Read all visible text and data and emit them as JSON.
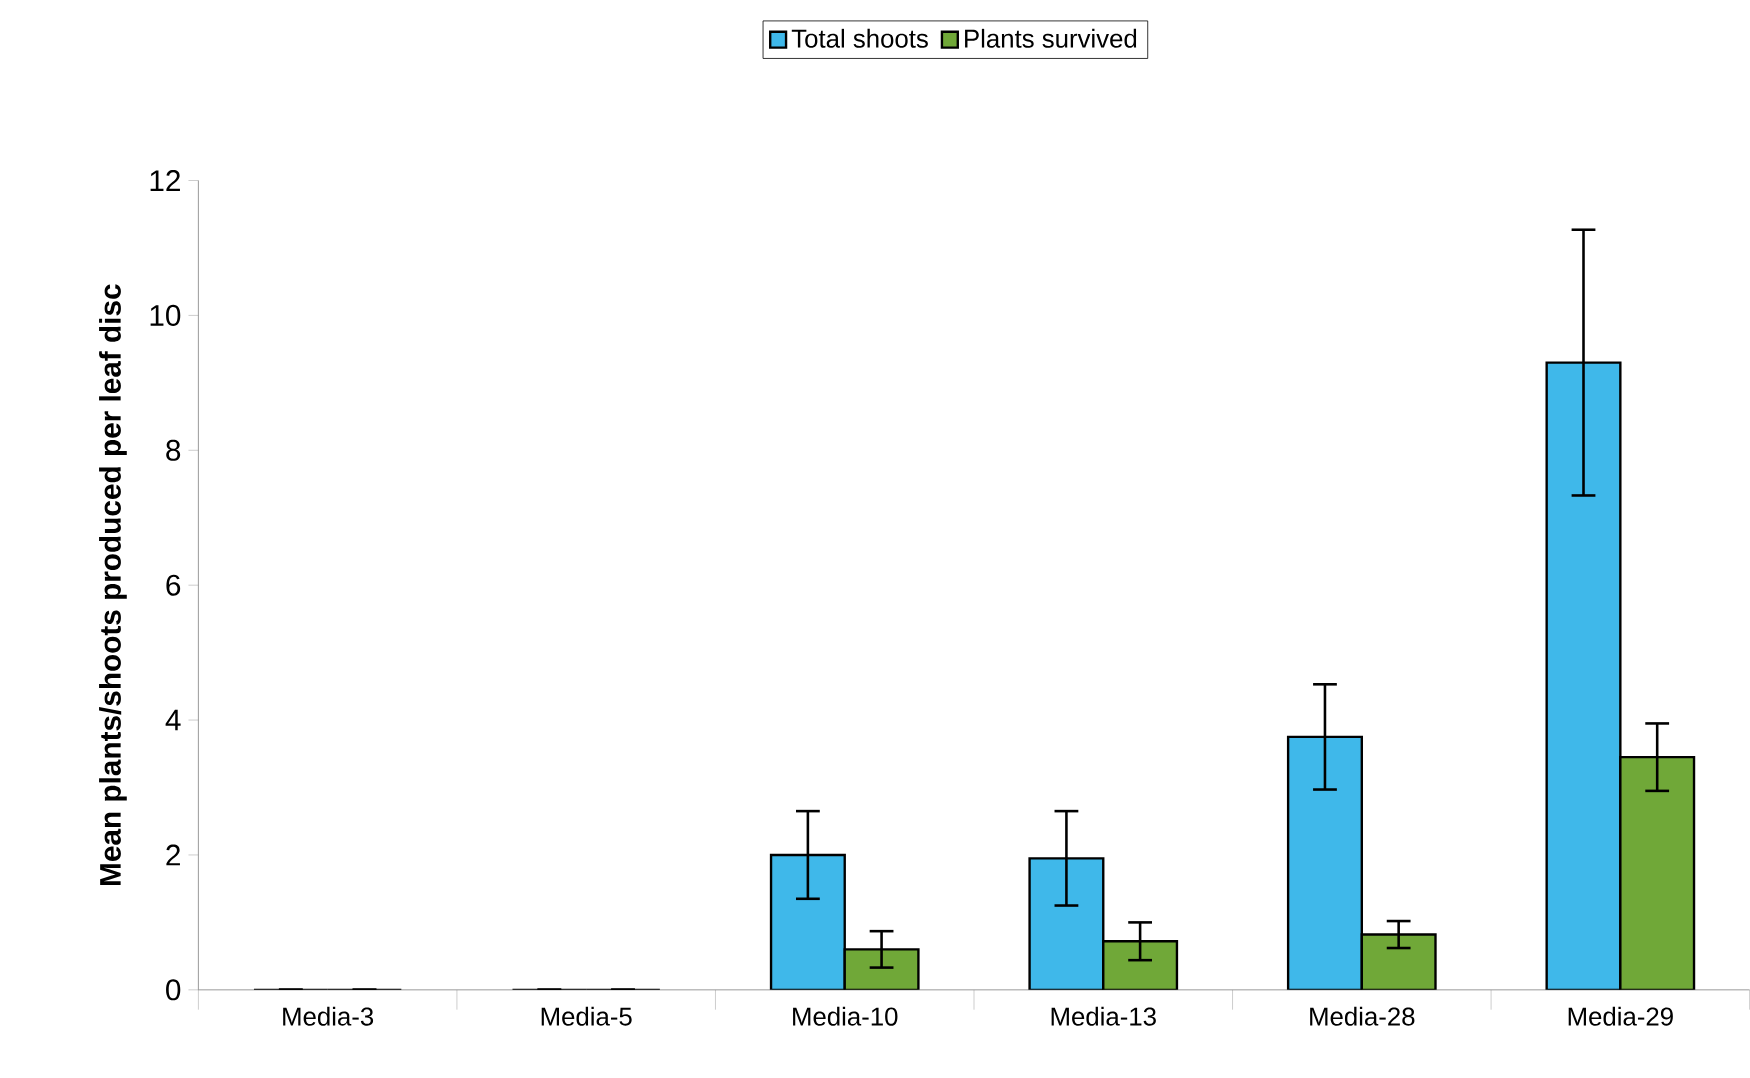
{
  "chart_data": {
    "type": "bar",
    "ylabel": "**Mean plants/shoots produced per leaf disc**",
    "categories": [
      "Media-3",
      "Media-5",
      "Media-10",
      "Media-13",
      "Media-28",
      "Media-29"
    ],
    "series": [
      {
        "name": "Total shoots",
        "color": "#3fb8ea",
        "values": [
          0,
          0,
          2.0,
          1.95,
          3.75,
          9.3
        ],
        "errors": [
          0,
          0,
          0.65,
          0.7,
          0.78,
          1.97
        ]
      },
      {
        "name": "Plants survived",
        "color": "#70a838",
        "values": [
          0,
          0,
          0.6,
          0.72,
          0.82,
          3.45
        ],
        "errors": [
          0,
          0,
          0.27,
          0.28,
          0.2,
          0.5
        ]
      }
    ],
    "ylim": [
      0,
      12
    ],
    "yticks": [
      0,
      2,
      4,
      6,
      8,
      10,
      12
    ],
    "grid": false,
    "legend": "top"
  }
}
